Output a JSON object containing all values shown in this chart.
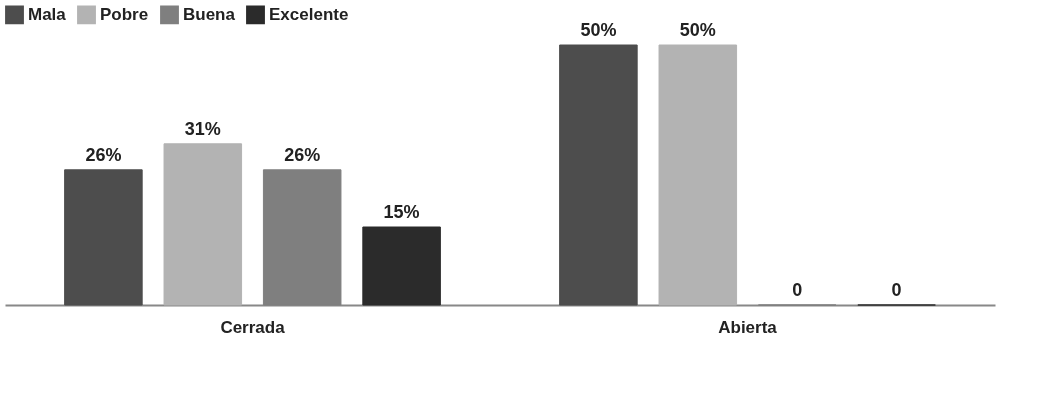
{
  "chart_data": {
    "type": "bar",
    "categories": [
      "Cerrada",
      "Abierta"
    ],
    "series": [
      {
        "name": "Mala",
        "color": "#4d4d4d",
        "values": [
          26,
          50
        ],
        "value_labels": [
          "26%",
          "50%"
        ]
      },
      {
        "name": "Pobre",
        "color": "#b3b3b3",
        "values": [
          31,
          50
        ],
        "value_labels": [
          "31%",
          "50%"
        ]
      },
      {
        "name": "Buena",
        "color": "#7f7f7f",
        "values": [
          26,
          0
        ],
        "value_labels": [
          "26%",
          "0"
        ]
      },
      {
        "name": "Excelente",
        "color": "#2b2b2b",
        "values": [
          15,
          0
        ],
        "value_labels": [
          "15%",
          "0"
        ]
      }
    ],
    "legend": "top",
    "grid": false
  }
}
